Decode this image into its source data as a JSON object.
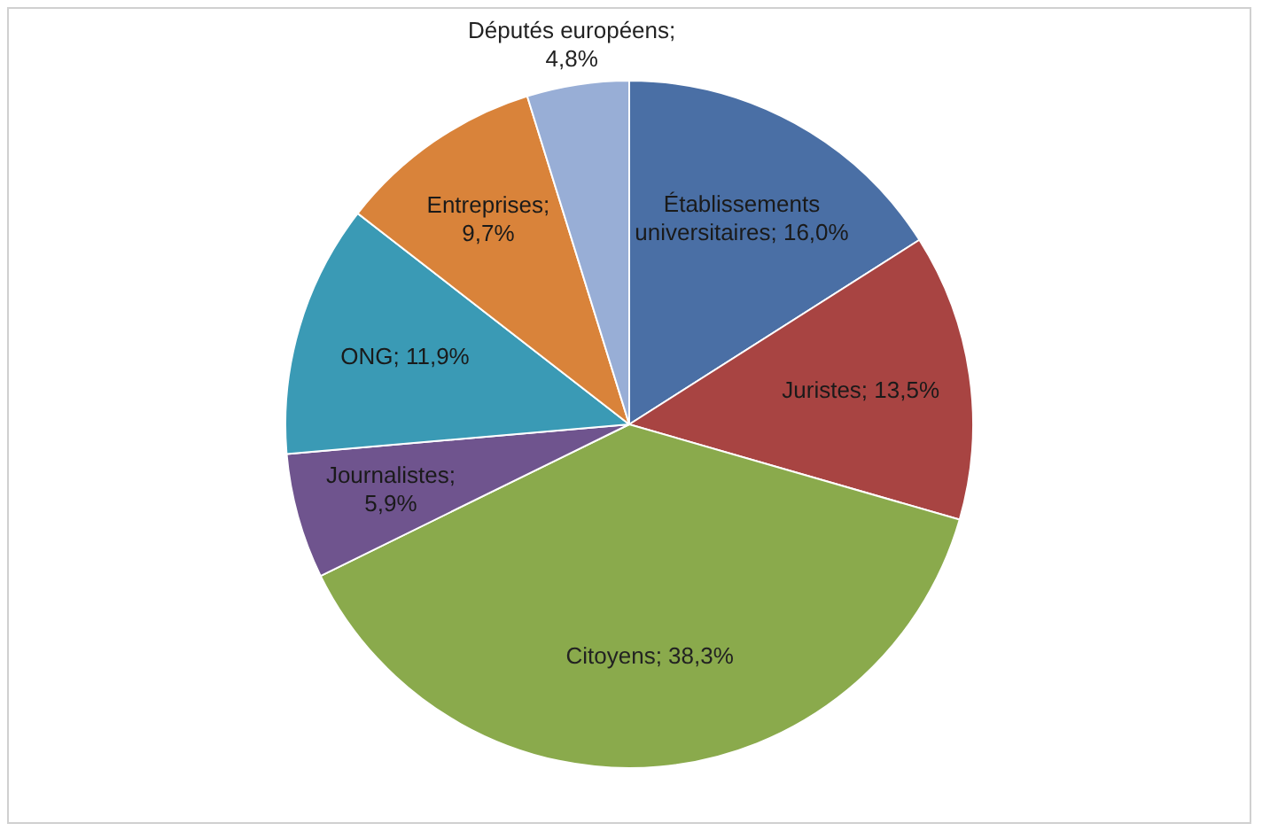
{
  "chart_data": {
    "type": "pie",
    "categories": [
      "Établissements universitaires",
      "Juristes",
      "Citoyens",
      "Journalistes",
      "ONG",
      "Entreprises",
      "Députés européens"
    ],
    "values": [
      16.0,
      13.5,
      38.3,
      5.9,
      11.9,
      9.7,
      4.8
    ],
    "value_labels": [
      "; 16,0%",
      "; 13,5%",
      "; 38,3%",
      "; 5,9%",
      "; 11,9%",
      "; 9,7%",
      "; 4,8%"
    ],
    "colors": [
      "#4a6fa5",
      "#a84442",
      "#8aaa4c",
      "#6f548e",
      "#3a9ab5",
      "#d9833a",
      "#98aed6"
    ],
    "legend": false
  }
}
